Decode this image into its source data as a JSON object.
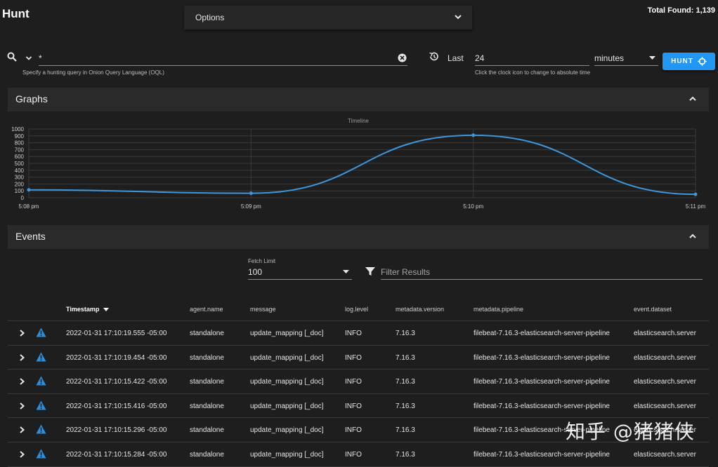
{
  "header": {
    "title": "Hunt",
    "options_label": "Options",
    "total_found": "Total Found: 1,139"
  },
  "query": {
    "value": "*",
    "hint": "Specify a hunting query in Onion Query Language (OQL)"
  },
  "time": {
    "last_label": "Last",
    "last_value": "24",
    "unit": "minutes",
    "hint": "Click the clock icon to change to absolute time"
  },
  "hunt_button": {
    "label": "HUNT"
  },
  "graphs": {
    "title": "Graphs"
  },
  "chart_data": {
    "type": "line",
    "title": "Timeline",
    "xlabel": "",
    "ylabel": "",
    "x_ticks": [
      "5:08 pm",
      "5:09 pm",
      "5:10 pm",
      "5:11 pm"
    ],
    "y_ticks": [
      0,
      100,
      200,
      300,
      400,
      500,
      600,
      700,
      800,
      900,
      1000
    ],
    "ylim": [
      0,
      1000
    ],
    "grid": true,
    "series": [
      {
        "x": [
          "5:08 pm",
          "5:09 pm",
          "5:10 pm",
          "5:11 pm"
        ],
        "values": [
          115,
          65,
          910,
          50
        ]
      }
    ],
    "color": "#3c97dd"
  },
  "events": {
    "title": "Events",
    "fetch_limit_label": "Fetch Limit",
    "fetch_limit_value": "100",
    "filter_placeholder": "Filter Results",
    "columns": [
      "Timestamp",
      "agent.name",
      "message",
      "log.level",
      "metadata.version",
      "metadata.pipeline",
      "event.dataset"
    ],
    "rows": [
      [
        "2022-01-31 17:10:19.555 -05:00",
        "standalone",
        "update_mapping [_doc]",
        "INFO",
        "7.16.3",
        "filebeat-7.16.3-elasticsearch-server-pipeline",
        "elasticsearch.server"
      ],
      [
        "2022-01-31 17:10:19.454 -05:00",
        "standalone",
        "update_mapping [_doc]",
        "INFO",
        "7.16.3",
        "filebeat-7.16.3-elasticsearch-server-pipeline",
        "elasticsearch.server"
      ],
      [
        "2022-01-31 17:10:15.422 -05:00",
        "standalone",
        "update_mapping [_doc]",
        "INFO",
        "7.16.3",
        "filebeat-7.16.3-elasticsearch-server-pipeline",
        "elasticsearch.server"
      ],
      [
        "2022-01-31 17:10:15.416 -05:00",
        "standalone",
        "update_mapping [_doc]",
        "INFO",
        "7.16.3",
        "filebeat-7.16.3-elasticsearch-server-pipeline",
        "elasticsearch.server"
      ],
      [
        "2022-01-31 17:10:15.296 -05:00",
        "standalone",
        "update_mapping [_doc]",
        "INFO",
        "7.16.3",
        "filebeat-7.16.3-elasticsearch-server-pipeline",
        "elasticsearch.server"
      ],
      [
        "2022-01-31 17:10:15.284 -05:00",
        "standalone",
        "update_mapping [_doc]",
        "INFO",
        "7.16.3",
        "filebeat-7.16.3-elasticsearch-server-pipeline",
        "elasticsearch.server"
      ]
    ]
  },
  "watermark": "知乎 @猪猪侠"
}
